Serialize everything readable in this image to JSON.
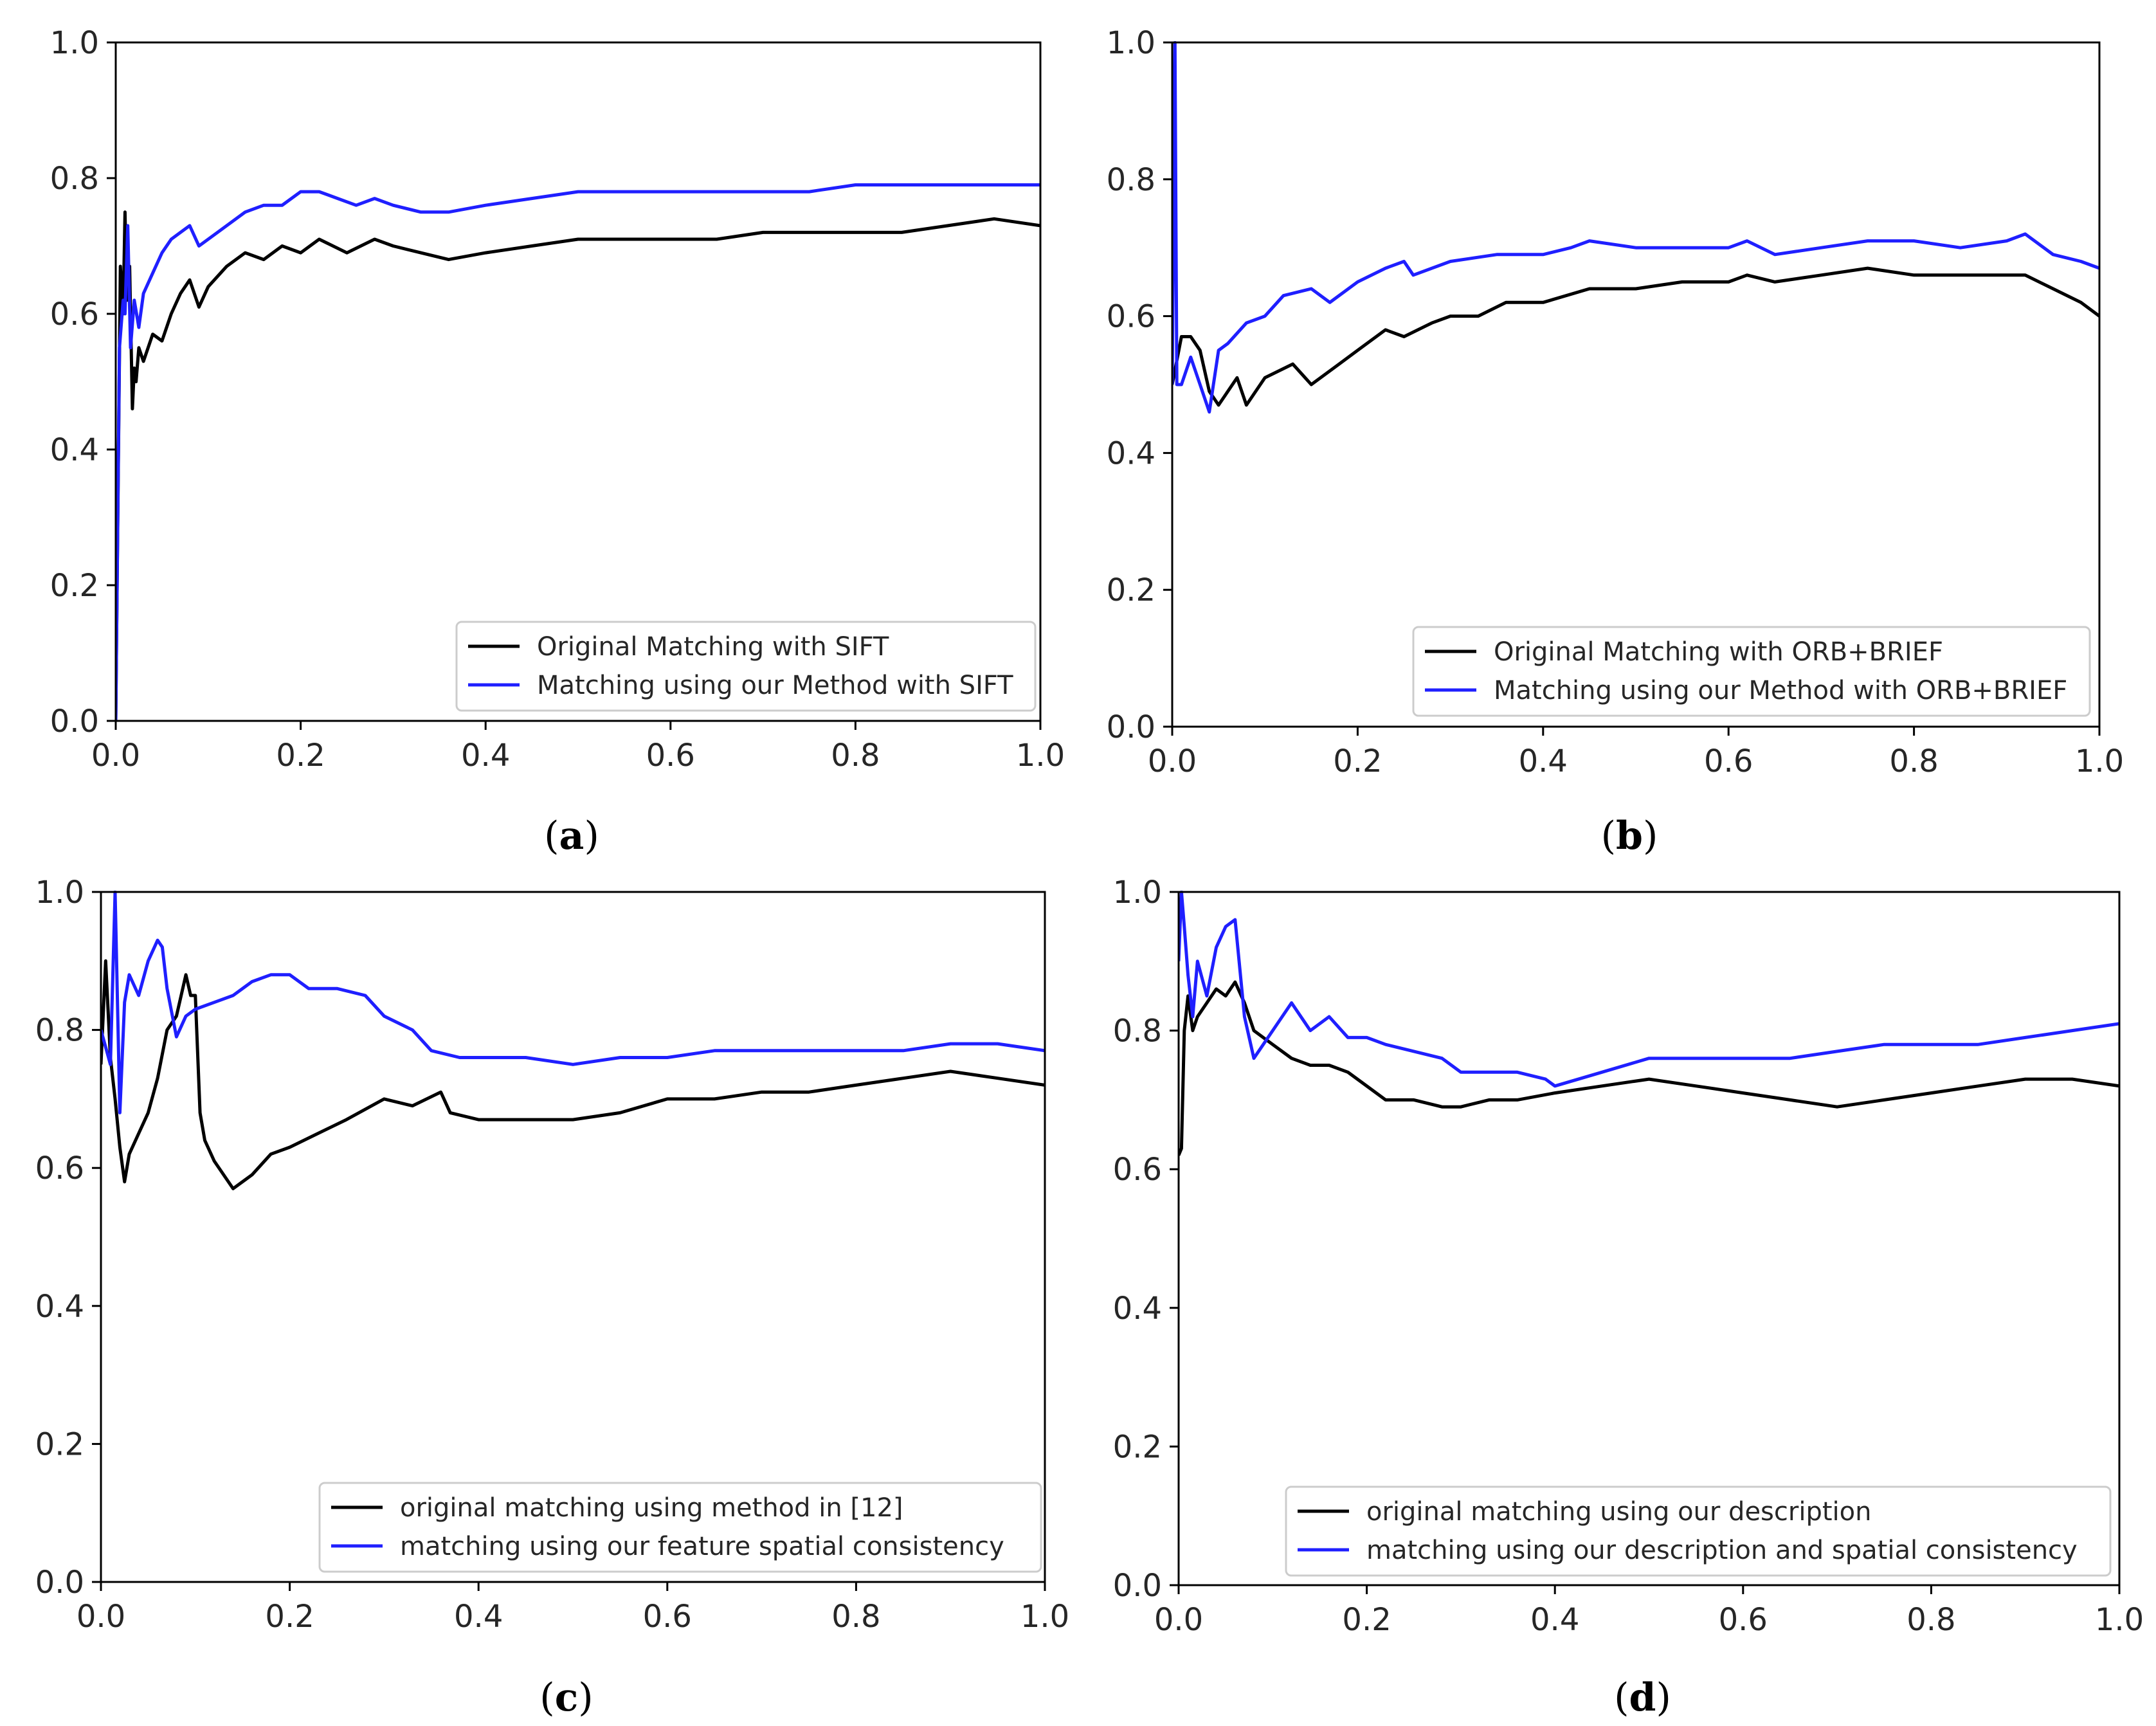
{
  "colors": {
    "original": "#000000",
    "ours": "#1f1fff",
    "axis": "#000000",
    "legend_border": "#cccccc"
  },
  "chart_data": [
    {
      "panel": "a",
      "type": "line",
      "caption": {
        "open": "(",
        "letter": "a",
        "close": ")"
      },
      "xlim": [
        0,
        1
      ],
      "ylim": [
        0,
        1
      ],
      "xticks": [
        "0.0",
        "0.2",
        "0.4",
        "0.6",
        "0.8",
        "1.0"
      ],
      "yticks": [
        "0.0",
        "0.2",
        "0.4",
        "0.6",
        "0.8",
        "1.0"
      ],
      "legend_position": "bottom-right",
      "series": [
        {
          "name": "Original Matching with SIFT",
          "color": "#000000",
          "x": [
            0,
            0.005,
            0.008,
            0.01,
            0.012,
            0.015,
            0.018,
            0.02,
            0.022,
            0.025,
            0.03,
            0.04,
            0.05,
            0.06,
            0.07,
            0.08,
            0.09,
            0.1,
            0.12,
            0.14,
            0.16,
            0.18,
            0.2,
            0.22,
            0.25,
            0.28,
            0.3,
            0.33,
            0.36,
            0.4,
            0.45,
            0.5,
            0.55,
            0.6,
            0.65,
            0.7,
            0.75,
            0.8,
            0.85,
            0.9,
            0.95,
            1.0
          ],
          "y": [
            0.0,
            0.67,
            0.6,
            0.75,
            0.62,
            0.67,
            0.46,
            0.52,
            0.5,
            0.55,
            0.53,
            0.57,
            0.56,
            0.6,
            0.63,
            0.65,
            0.61,
            0.64,
            0.67,
            0.69,
            0.68,
            0.7,
            0.69,
            0.71,
            0.69,
            0.71,
            0.7,
            0.69,
            0.68,
            0.69,
            0.7,
            0.71,
            0.71,
            0.71,
            0.71,
            0.72,
            0.72,
            0.72,
            0.72,
            0.73,
            0.74,
            0.73
          ]
        },
        {
          "name": "Matching using our Method with SIFT",
          "color": "#1f1fff",
          "x": [
            0,
            0.004,
            0.008,
            0.01,
            0.013,
            0.016,
            0.02,
            0.025,
            0.03,
            0.04,
            0.05,
            0.06,
            0.07,
            0.08,
            0.09,
            0.1,
            0.12,
            0.14,
            0.16,
            0.18,
            0.2,
            0.22,
            0.24,
            0.26,
            0.28,
            0.3,
            0.33,
            0.36,
            0.4,
            0.45,
            0.5,
            0.55,
            0.6,
            0.65,
            0.7,
            0.75,
            0.8,
            0.85,
            0.9,
            0.95,
            1.0
          ],
          "y": [
            0.0,
            0.55,
            0.62,
            0.6,
            0.73,
            0.55,
            0.62,
            0.58,
            0.63,
            0.66,
            0.69,
            0.71,
            0.72,
            0.73,
            0.7,
            0.71,
            0.73,
            0.75,
            0.76,
            0.76,
            0.78,
            0.78,
            0.77,
            0.76,
            0.77,
            0.76,
            0.75,
            0.75,
            0.76,
            0.77,
            0.78,
            0.78,
            0.78,
            0.78,
            0.78,
            0.78,
            0.79,
            0.79,
            0.79,
            0.79,
            0.79
          ]
        }
      ]
    },
    {
      "panel": "b",
      "type": "line",
      "caption": {
        "open": "(",
        "letter": "b",
        "close": ")"
      },
      "xlim": [
        0,
        1
      ],
      "ylim": [
        0,
        1
      ],
      "xticks": [
        "0.0",
        "0.2",
        "0.4",
        "0.6",
        "0.8",
        "1.0"
      ],
      "yticks": [
        "0.0",
        "0.2",
        "0.4",
        "0.6",
        "0.8",
        "1.0"
      ],
      "legend_position": "bottom-right",
      "series": [
        {
          "name": "Original Matching with ORB+BRIEF",
          "color": "#000000",
          "x": [
            0,
            0.01,
            0.02,
            0.03,
            0.04,
            0.05,
            0.06,
            0.07,
            0.08,
            0.1,
            0.13,
            0.15,
            0.18,
            0.2,
            0.23,
            0.25,
            0.28,
            0.3,
            0.33,
            0.36,
            0.4,
            0.45,
            0.5,
            0.55,
            0.6,
            0.62,
            0.65,
            0.7,
            0.75,
            0.8,
            0.85,
            0.9,
            0.92,
            0.95,
            0.98,
            1.0
          ],
          "y": [
            0.5,
            0.57,
            0.57,
            0.55,
            0.49,
            0.47,
            0.49,
            0.51,
            0.47,
            0.51,
            0.53,
            0.5,
            0.53,
            0.55,
            0.58,
            0.57,
            0.59,
            0.6,
            0.6,
            0.62,
            0.62,
            0.64,
            0.64,
            0.65,
            0.65,
            0.66,
            0.65,
            0.66,
            0.67,
            0.66,
            0.66,
            0.66,
            0.66,
            0.64,
            0.62,
            0.6
          ]
        },
        {
          "name": "Matching using our Method with ORB+BRIEF",
          "color": "#1f1fff",
          "x": [
            0,
            0.003,
            0.005,
            0.01,
            0.02,
            0.03,
            0.04,
            0.05,
            0.06,
            0.08,
            0.1,
            0.12,
            0.15,
            0.17,
            0.2,
            0.23,
            0.25,
            0.26,
            0.3,
            0.35,
            0.4,
            0.43,
            0.45,
            0.5,
            0.55,
            0.6,
            0.62,
            0.65,
            0.7,
            0.75,
            0.8,
            0.85,
            0.9,
            0.92,
            0.95,
            0.98,
            1.0
          ],
          "y": [
            0.5,
            1.0,
            0.5,
            0.5,
            0.54,
            0.5,
            0.46,
            0.55,
            0.56,
            0.59,
            0.6,
            0.63,
            0.64,
            0.62,
            0.65,
            0.67,
            0.68,
            0.66,
            0.68,
            0.69,
            0.69,
            0.7,
            0.71,
            0.7,
            0.7,
            0.7,
            0.71,
            0.69,
            0.7,
            0.71,
            0.71,
            0.7,
            0.71,
            0.72,
            0.69,
            0.68,
            0.67
          ]
        }
      ]
    },
    {
      "panel": "c",
      "type": "line",
      "caption": {
        "open": "(",
        "letter": "c",
        "close": ")"
      },
      "xlim": [
        0,
        1
      ],
      "ylim": [
        0,
        1
      ],
      "xticks": [
        "0.0",
        "0.2",
        "0.4",
        "0.6",
        "0.8",
        "1.0"
      ],
      "yticks": [
        "0.0",
        "0.2",
        "0.4",
        "0.6",
        "0.8",
        "1.0"
      ],
      "legend_position": "bottom-right",
      "series": [
        {
          "name": "original matching using method in [12]",
          "color": "#000000",
          "x": [
            0,
            0.005,
            0.01,
            0.015,
            0.02,
            0.025,
            0.03,
            0.04,
            0.05,
            0.06,
            0.07,
            0.08,
            0.09,
            0.095,
            0.1,
            0.105,
            0.11,
            0.12,
            0.14,
            0.16,
            0.18,
            0.2,
            0.23,
            0.26,
            0.3,
            0.33,
            0.36,
            0.37,
            0.4,
            0.45,
            0.5,
            0.55,
            0.6,
            0.65,
            0.7,
            0.75,
            0.8,
            0.85,
            0.9,
            0.95,
            1.0
          ],
          "y": [
            0.75,
            0.9,
            0.76,
            0.7,
            0.63,
            0.58,
            0.62,
            0.65,
            0.68,
            0.73,
            0.8,
            0.82,
            0.88,
            0.85,
            0.85,
            0.68,
            0.64,
            0.61,
            0.57,
            0.59,
            0.62,
            0.63,
            0.65,
            0.67,
            0.7,
            0.69,
            0.71,
            0.68,
            0.67,
            0.67,
            0.67,
            0.68,
            0.7,
            0.7,
            0.71,
            0.71,
            0.72,
            0.73,
            0.74,
            0.73,
            0.72
          ]
        },
        {
          "name": "matching using our feature spatial consistency",
          "color": "#1f1fff",
          "x": [
            0,
            0.01,
            0.015,
            0.02,
            0.025,
            0.03,
            0.04,
            0.05,
            0.06,
            0.065,
            0.07,
            0.08,
            0.09,
            0.1,
            0.12,
            0.14,
            0.16,
            0.18,
            0.2,
            0.22,
            0.25,
            0.28,
            0.3,
            0.33,
            0.35,
            0.38,
            0.4,
            0.45,
            0.5,
            0.55,
            0.6,
            0.65,
            0.7,
            0.75,
            0.8,
            0.85,
            0.9,
            0.95,
            1.0
          ],
          "y": [
            0.8,
            0.75,
            1.0,
            0.68,
            0.84,
            0.88,
            0.85,
            0.9,
            0.93,
            0.92,
            0.86,
            0.79,
            0.82,
            0.83,
            0.84,
            0.85,
            0.87,
            0.88,
            0.88,
            0.86,
            0.86,
            0.85,
            0.82,
            0.8,
            0.77,
            0.76,
            0.76,
            0.76,
            0.75,
            0.76,
            0.76,
            0.77,
            0.77,
            0.77,
            0.77,
            0.77,
            0.78,
            0.78,
            0.77
          ]
        }
      ]
    },
    {
      "panel": "d",
      "type": "line",
      "caption": {
        "open": "(",
        "letter": "d",
        "close": ")"
      },
      "xlim": [
        0,
        1
      ],
      "ylim": [
        0,
        1
      ],
      "xticks": [
        "0.0",
        "0.2",
        "0.4",
        "0.6",
        "0.8",
        "1.0"
      ],
      "yticks": [
        "0.0",
        "0.2",
        "0.4",
        "0.6",
        "0.8",
        "1.0"
      ],
      "legend_position": "bottom-right",
      "series": [
        {
          "name": "original matching using our description",
          "color": "#000000",
          "x": [
            0,
            0.003,
            0.006,
            0.01,
            0.015,
            0.02,
            0.03,
            0.04,
            0.05,
            0.06,
            0.07,
            0.08,
            0.1,
            0.12,
            0.14,
            0.16,
            0.18,
            0.2,
            0.22,
            0.25,
            0.28,
            0.3,
            0.33,
            0.36,
            0.4,
            0.45,
            0.5,
            0.55,
            0.6,
            0.65,
            0.7,
            0.75,
            0.8,
            0.85,
            0.9,
            0.95,
            1.0
          ],
          "y": [
            0.62,
            0.63,
            0.8,
            0.85,
            0.8,
            0.82,
            0.84,
            0.86,
            0.85,
            0.87,
            0.84,
            0.8,
            0.78,
            0.76,
            0.75,
            0.75,
            0.74,
            0.72,
            0.7,
            0.7,
            0.69,
            0.69,
            0.7,
            0.7,
            0.71,
            0.72,
            0.73,
            0.72,
            0.71,
            0.7,
            0.69,
            0.7,
            0.71,
            0.72,
            0.73,
            0.73,
            0.72
          ]
        },
        {
          "name": "matching using our description and spatial consistency",
          "color": "#1f1fff",
          "x": [
            0,
            0.003,
            0.006,
            0.01,
            0.015,
            0.02,
            0.03,
            0.04,
            0.05,
            0.06,
            0.07,
            0.08,
            0.1,
            0.12,
            0.14,
            0.16,
            0.18,
            0.2,
            0.22,
            0.25,
            0.28,
            0.3,
            0.33,
            0.36,
            0.39,
            0.4,
            0.45,
            0.5,
            0.55,
            0.6,
            0.65,
            0.7,
            0.75,
            0.8,
            0.85,
            0.9,
            0.95,
            1.0
          ],
          "y": [
            0.9,
            1.0,
            0.95,
            0.88,
            0.82,
            0.9,
            0.85,
            0.92,
            0.95,
            0.96,
            0.82,
            0.76,
            0.8,
            0.84,
            0.8,
            0.82,
            0.79,
            0.79,
            0.78,
            0.77,
            0.76,
            0.74,
            0.74,
            0.74,
            0.73,
            0.72,
            0.74,
            0.76,
            0.76,
            0.76,
            0.76,
            0.77,
            0.78,
            0.78,
            0.78,
            0.79,
            0.8,
            0.81
          ]
        }
      ]
    }
  ]
}
